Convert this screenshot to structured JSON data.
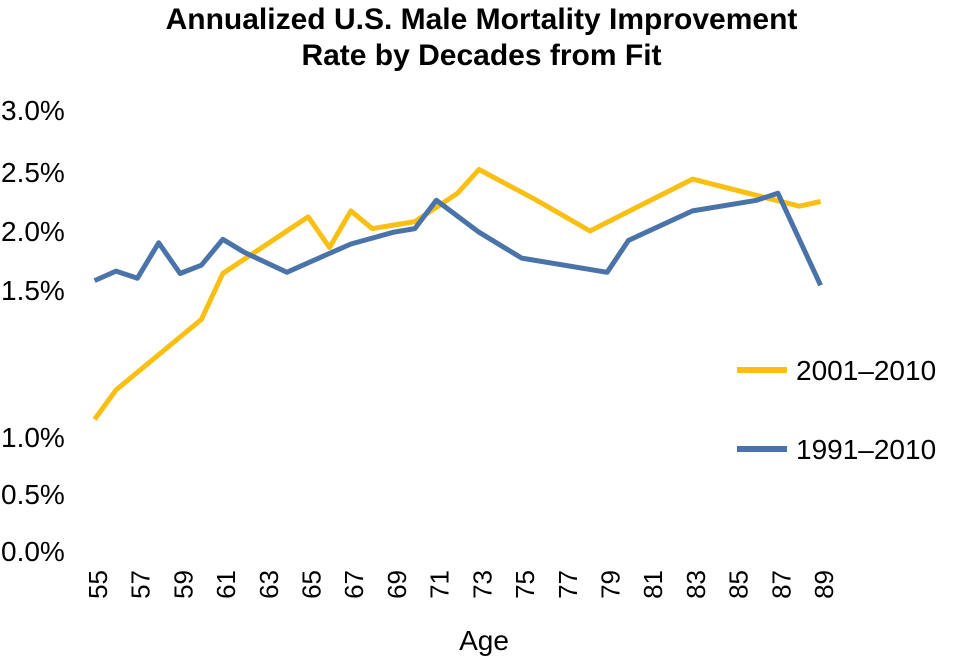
{
  "chart_data": {
    "type": "line",
    "title_lines": [
      "Annualized U.S. Male Mortality Improvement",
      "Rate by Decades from Fit"
    ],
    "xlabel": "Age",
    "ylabel": "",
    "x_tick_labels": [
      "55",
      "57",
      "59",
      "61",
      "63",
      "65",
      "67",
      "69",
      "71",
      "73",
      "75",
      "77",
      "79",
      "81",
      "83",
      "85",
      "87",
      "89"
    ],
    "y_tick_labels": [
      "0.0%",
      "0.5%",
      "1.0%",
      "1.5%",
      "2.0%",
      "2.5%",
      "3.0%"
    ],
    "xlim": [
      54,
      89
    ],
    "grid": false,
    "legend_position": "right",
    "series": [
      {
        "name": "2001–2010",
        "color": "#f9c013",
        "points": [
          [
            54.0,
            1.06
          ],
          [
            55.0,
            1.16
          ],
          [
            56.0,
            1.22
          ],
          [
            57.0,
            1.28
          ],
          [
            58.0,
            1.34
          ],
          [
            59.0,
            1.4
          ],
          [
            60.0,
            1.64
          ],
          [
            61.0,
            1.76
          ],
          [
            62.0,
            1.88
          ],
          [
            63.0,
            2.0
          ],
          [
            64.0,
            2.12
          ],
          [
            65.0,
            1.86
          ],
          [
            66.0,
            2.17
          ],
          [
            67.0,
            2.02
          ],
          [
            68.0,
            2.05
          ],
          [
            69.0,
            2.08
          ],
          [
            70.0,
            2.2
          ],
          [
            71.0,
            2.32
          ],
          [
            72.0,
            2.52
          ],
          [
            74.6,
            2.27
          ],
          [
            77.2,
            2.0
          ],
          [
            82.0,
            2.44
          ],
          [
            87.0,
            2.21
          ],
          [
            88.0,
            2.25
          ]
        ]
      },
      {
        "name": "1991–2010",
        "color": "#4a74a9",
        "points": [
          [
            54.0,
            1.58
          ],
          [
            55.0,
            1.66
          ],
          [
            56.0,
            1.6
          ],
          [
            57.0,
            1.9
          ],
          [
            58.0,
            1.64
          ],
          [
            59.0,
            1.71
          ],
          [
            60.0,
            1.93
          ],
          [
            61.0,
            1.82
          ],
          [
            63.0,
            1.65
          ],
          [
            65.0,
            1.81
          ],
          [
            66.0,
            1.89
          ],
          [
            67.0,
            1.94
          ],
          [
            68.0,
            1.99
          ],
          [
            69.0,
            2.02
          ],
          [
            70.0,
            2.26
          ],
          [
            72.0,
            1.99
          ],
          [
            74.0,
            1.77
          ],
          [
            78.0,
            1.65
          ],
          [
            79.0,
            1.92
          ],
          [
            82.0,
            2.17
          ],
          [
            85.0,
            2.26
          ],
          [
            86.0,
            2.32
          ],
          [
            88.0,
            1.54
          ]
        ]
      }
    ]
  }
}
